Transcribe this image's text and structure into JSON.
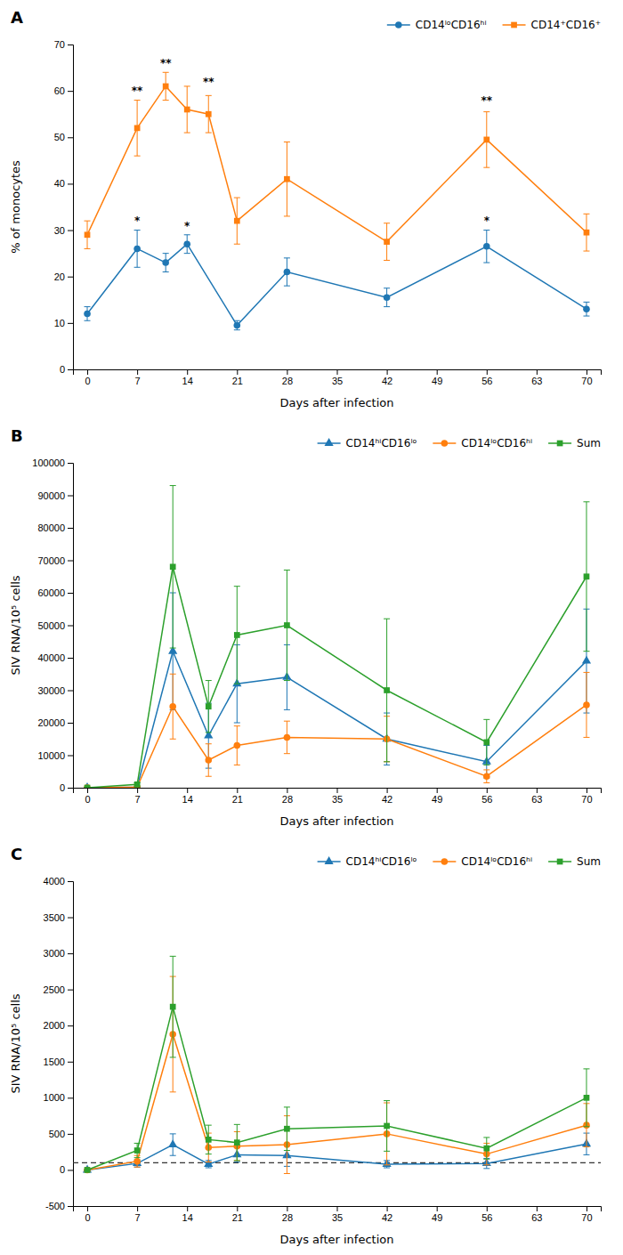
{
  "chart_data": [
    {
      "type": "line",
      "title": "A",
      "x_label": "Days after infection",
      "y_label": "% of monocytes",
      "xlim": [
        -2,
        72
      ],
      "ylim": [
        0,
        70
      ],
      "xticks": [
        0,
        7,
        14,
        21,
        28,
        35,
        42,
        49,
        56,
        63,
        70
      ],
      "yticks": [
        0,
        10,
        20,
        30,
        40,
        50,
        60,
        70
      ],
      "grid": false,
      "legend": "upper right",
      "series": [
        {
          "name": "CD14ˡᵒCD16ʰⁱ",
          "marker": "circle",
          "x": [
            0,
            7,
            11,
            14,
            21,
            28,
            42,
            56,
            70
          ],
          "values": [
            12,
            26,
            23,
            27,
            9.5,
            21,
            15.5,
            26.5,
            13
          ],
          "errors": [
            1.5,
            4,
            2,
            2,
            1,
            3,
            2,
            3.5,
            1.5
          ]
        },
        {
          "name": "CD14⁺CD16⁺",
          "marker": "square",
          "x": [
            0,
            7,
            11,
            14,
            17,
            21,
            28,
            42,
            56,
            70
          ],
          "values": [
            29,
            52,
            61,
            56,
            55,
            32,
            41,
            27.5,
            49.5,
            29.5
          ],
          "errors": [
            3,
            6,
            3,
            5,
            4,
            5,
            8,
            4,
            6,
            4
          ]
        }
      ],
      "annotations": [
        {
          "text": "**",
          "x": 7,
          "y": 59
        },
        {
          "text": "**",
          "x": 11,
          "y": 65
        },
        {
          "text": "**",
          "x": 17,
          "y": 61
        },
        {
          "text": "**",
          "x": 56,
          "y": 57
        },
        {
          "text": "*",
          "x": 7,
          "y": 31
        },
        {
          "text": "*",
          "x": 14,
          "y": 30
        },
        {
          "text": "*",
          "x": 56,
          "y": 31
        }
      ]
    },
    {
      "type": "line",
      "title": "B",
      "x_label": "Days after infection",
      "y_label": "SIV RNA/10⁵ cells",
      "xlim": [
        -2,
        72
      ],
      "ylim": [
        0,
        100000
      ],
      "xticks": [
        0,
        7,
        14,
        21,
        28,
        35,
        42,
        49,
        56,
        63,
        70
      ],
      "yticks": [
        0,
        10000,
        20000,
        30000,
        40000,
        50000,
        60000,
        70000,
        80000,
        90000,
        100000
      ],
      "grid": false,
      "legend": "upper right",
      "x": [
        0,
        7,
        12,
        17,
        21,
        28,
        42,
        56,
        70
      ],
      "series": [
        {
          "name": "CD14ʰⁱCD16ˡᵒ",
          "marker": "triangle",
          "values": [
            0,
            200,
            42000,
            16000,
            32000,
            34000,
            15000,
            8000,
            39000
          ],
          "errors": [
            0,
            200,
            18000,
            10000,
            12000,
            10000,
            8000,
            5000,
            16000
          ]
        },
        {
          "name": "CD14ˡᵒCD16ʰⁱ",
          "marker": "circle",
          "values": [
            0,
            200,
            25000,
            8500,
            13000,
            15500,
            15000,
            3500,
            25500
          ],
          "errors": [
            0,
            200,
            10000,
            5000,
            6000,
            5000,
            7000,
            2000,
            10000
          ]
        },
        {
          "name": "Sum",
          "marker": "square",
          "values": [
            0,
            1000,
            68000,
            25000,
            47000,
            50000,
            30000,
            14000,
            65000
          ],
          "errors": [
            0,
            500,
            25000,
            8000,
            15000,
            17000,
            22000,
            7000,
            23000
          ]
        }
      ]
    },
    {
      "type": "line",
      "title": "C",
      "x_label": "Days after infection",
      "y_label": "SIV RNA/10⁵ cells",
      "xlim": [
        -2,
        72
      ],
      "ylim": [
        -500,
        4000
      ],
      "xticks": [
        0,
        7,
        14,
        21,
        28,
        35,
        42,
        49,
        56,
        63,
        70
      ],
      "yticks": [
        -500,
        0,
        500,
        1000,
        1500,
        2000,
        2500,
        3000,
        3500,
        4000
      ],
      "grid": false,
      "legend": "upper right",
      "x": [
        0,
        7,
        12,
        17,
        21,
        28,
        42,
        56,
        70
      ],
      "series": [
        {
          "name": "CD14ʰⁱCD16ˡᵒ",
          "marker": "triangle",
          "values": [
            0,
            90,
            350,
            80,
            210,
            200,
            80,
            90,
            360
          ],
          "errors": [
            0,
            50,
            150,
            50,
            100,
            150,
            50,
            70,
            150
          ]
        },
        {
          "name": "CD14ˡᵒCD16ʰⁱ",
          "marker": "circle",
          "values": [
            0,
            120,
            1880,
            310,
            330,
            350,
            500,
            220,
            620
          ],
          "errors": [
            0,
            80,
            800,
            200,
            200,
            400,
            430,
            150,
            300
          ]
        },
        {
          "name": "Sum",
          "marker": "square",
          "values": [
            0,
            270,
            2260,
            420,
            380,
            570,
            610,
            300,
            1000
          ],
          "errors": [
            0,
            100,
            700,
            200,
            250,
            300,
            350,
            150,
            400
          ]
        }
      ],
      "reference_lines": [
        {
          "y": 100,
          "line_style": "dashed"
        }
      ]
    }
  ]
}
